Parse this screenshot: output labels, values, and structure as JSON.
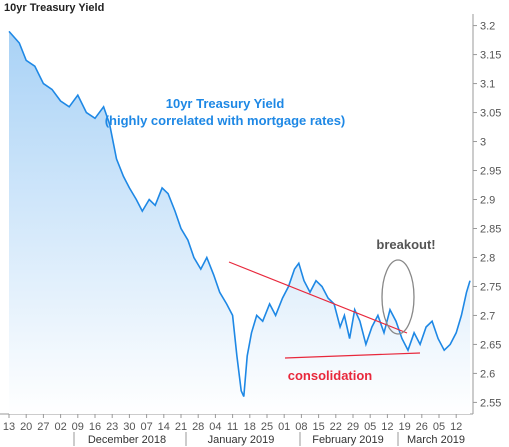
{
  "chart_data": {
    "type": "area",
    "title": "10yr Treasury Yield",
    "annotation_title": [
      "10yr Treasury Yield",
      "(highly correlated with mortgage rates)"
    ],
    "annotation_breakout": "breakout!",
    "annotation_consolidation": "consolidation",
    "y_ticks": [
      "3.2",
      "3.15",
      "3.1",
      "3.05",
      "3",
      "2.95",
      "2.9",
      "2.85",
      "2.8",
      "2.75",
      "2.7",
      "2.65",
      "2.6",
      "2.55"
    ],
    "ylim": [
      2.53,
      3.22
    ],
    "x_ticks": [
      "13",
      "20",
      "27",
      "02",
      "09",
      "16",
      "23",
      "30",
      "07",
      "14",
      "21",
      "28",
      "04",
      "11",
      "18",
      "25",
      "01",
      "08",
      "15",
      "22",
      "29",
      "05",
      "12",
      "19",
      "26",
      "05",
      "12",
      "19"
    ],
    "x_tick_labels_shown": [
      "13",
      "20",
      "27",
      "02",
      "09",
      "16",
      "23",
      "30",
      "07",
      "14",
      "21",
      "28",
      "04",
      "11",
      "18",
      "25",
      "01",
      "08",
      "15",
      "22",
      "29",
      "05",
      "12",
      "19",
      "26",
      "05",
      "12",
      "19"
    ],
    "months": [
      "December 2018",
      "January 2019",
      "February 2019",
      "March 2019"
    ],
    "series": [
      {
        "values": [
          [
            0.0,
            3.19
          ],
          [
            1.2,
            3.17
          ],
          [
            2.0,
            3.14
          ],
          [
            3.0,
            3.13
          ],
          [
            4.0,
            3.1
          ],
          [
            5.0,
            3.09
          ],
          [
            6.0,
            3.07
          ],
          [
            7.0,
            3.06
          ],
          [
            8.0,
            3.08
          ],
          [
            9.0,
            3.05
          ],
          [
            10.0,
            3.04
          ],
          [
            11.0,
            3.06
          ],
          [
            11.7,
            3.03
          ],
          [
            12.5,
            2.97
          ],
          [
            13.3,
            2.94
          ],
          [
            14.0,
            2.92
          ],
          [
            14.8,
            2.9
          ],
          [
            15.5,
            2.88
          ],
          [
            16.3,
            2.9
          ],
          [
            17.0,
            2.89
          ],
          [
            17.8,
            2.92
          ],
          [
            18.5,
            2.91
          ],
          [
            19.3,
            2.88
          ],
          [
            20.0,
            2.85
          ],
          [
            20.8,
            2.83
          ],
          [
            21.5,
            2.8
          ],
          [
            22.3,
            2.78
          ],
          [
            23.0,
            2.8
          ],
          [
            23.8,
            2.77
          ],
          [
            24.5,
            2.74
          ],
          [
            25.3,
            2.72
          ],
          [
            26.0,
            2.7
          ],
          [
            26.5,
            2.63
          ],
          [
            27.0,
            2.57
          ],
          [
            27.3,
            2.56
          ],
          [
            27.7,
            2.63
          ],
          [
            28.2,
            2.67
          ],
          [
            28.8,
            2.7
          ],
          [
            29.5,
            2.69
          ],
          [
            30.3,
            2.72
          ],
          [
            31.0,
            2.7
          ],
          [
            31.8,
            2.73
          ],
          [
            32.5,
            2.75
          ],
          [
            33.2,
            2.78
          ],
          [
            33.7,
            2.79
          ],
          [
            34.3,
            2.76
          ],
          [
            35.0,
            2.74
          ],
          [
            35.7,
            2.76
          ],
          [
            36.4,
            2.75
          ],
          [
            37.1,
            2.73
          ],
          [
            37.8,
            2.72
          ],
          [
            38.5,
            2.68
          ],
          [
            39.0,
            2.7
          ],
          [
            39.6,
            2.66
          ],
          [
            40.2,
            2.71
          ],
          [
            40.8,
            2.69
          ],
          [
            41.5,
            2.65
          ],
          [
            42.2,
            2.68
          ],
          [
            42.9,
            2.7
          ],
          [
            43.6,
            2.67
          ],
          [
            44.3,
            2.71
          ],
          [
            45.0,
            2.69
          ],
          [
            45.7,
            2.66
          ],
          [
            46.4,
            2.64
          ],
          [
            47.1,
            2.67
          ],
          [
            47.8,
            2.65
          ],
          [
            48.5,
            2.68
          ],
          [
            49.2,
            2.69
          ],
          [
            49.9,
            2.66
          ],
          [
            50.6,
            2.64
          ],
          [
            51.3,
            2.65
          ],
          [
            52.0,
            2.67
          ],
          [
            52.6,
            2.7
          ],
          [
            53.2,
            2.74
          ],
          [
            53.6,
            2.76
          ]
        ]
      }
    ],
    "colors": {
      "line": "#1e88e5",
      "fill_top": "#a9d2f6",
      "fill_bottom": "#ffffff",
      "annotation": "#1e88e5",
      "trend": "#e8283c",
      "ellipse": "#888888",
      "breakout_text": "#555555",
      "consolidation_text": "#e8283c"
    }
  }
}
